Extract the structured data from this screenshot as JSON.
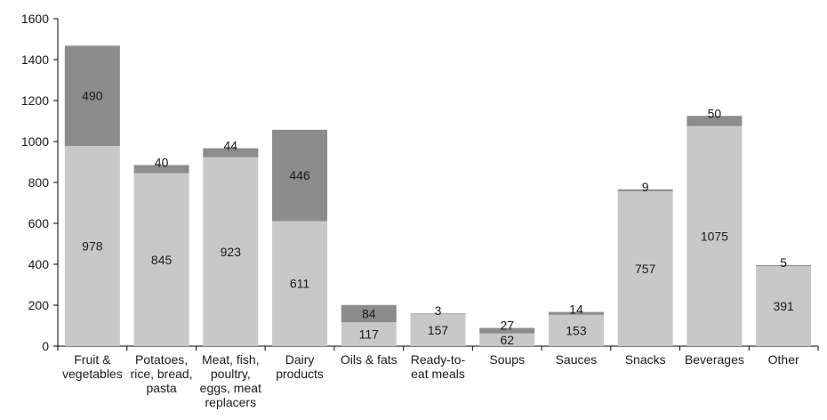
{
  "chart_data": {
    "type": "bar",
    "stacked": true,
    "title": "",
    "xlabel": "",
    "ylabel": "",
    "ylim": [
      0,
      1600
    ],
    "yticks": [
      0,
      200,
      400,
      600,
      800,
      1000,
      1200,
      1400,
      1600
    ],
    "grid": false,
    "categories": [
      [
        "Fruit &",
        "vegetables"
      ],
      [
        "Potatoes,",
        "rice, bread,",
        "pasta"
      ],
      [
        "Meat, fish,",
        "poultry,",
        "eggs, meat",
        "replacers"
      ],
      [
        "Dairy",
        "products"
      ],
      [
        "Oils & fats"
      ],
      [
        "Ready-to-",
        "eat meals"
      ],
      [
        "Soups"
      ],
      [
        "Sauces"
      ],
      [
        "Snacks"
      ],
      [
        "Beverages"
      ],
      [
        "Other"
      ]
    ],
    "series": [
      {
        "values": [
          978,
          845,
          923,
          611,
          117,
          157,
          62,
          153,
          757,
          1075,
          391
        ],
        "color": "#c8c8c8"
      },
      {
        "values": [
          490,
          40,
          44,
          446,
          84,
          3,
          27,
          14,
          9,
          50,
          5
        ],
        "color": "#8c8c8c"
      }
    ]
  }
}
